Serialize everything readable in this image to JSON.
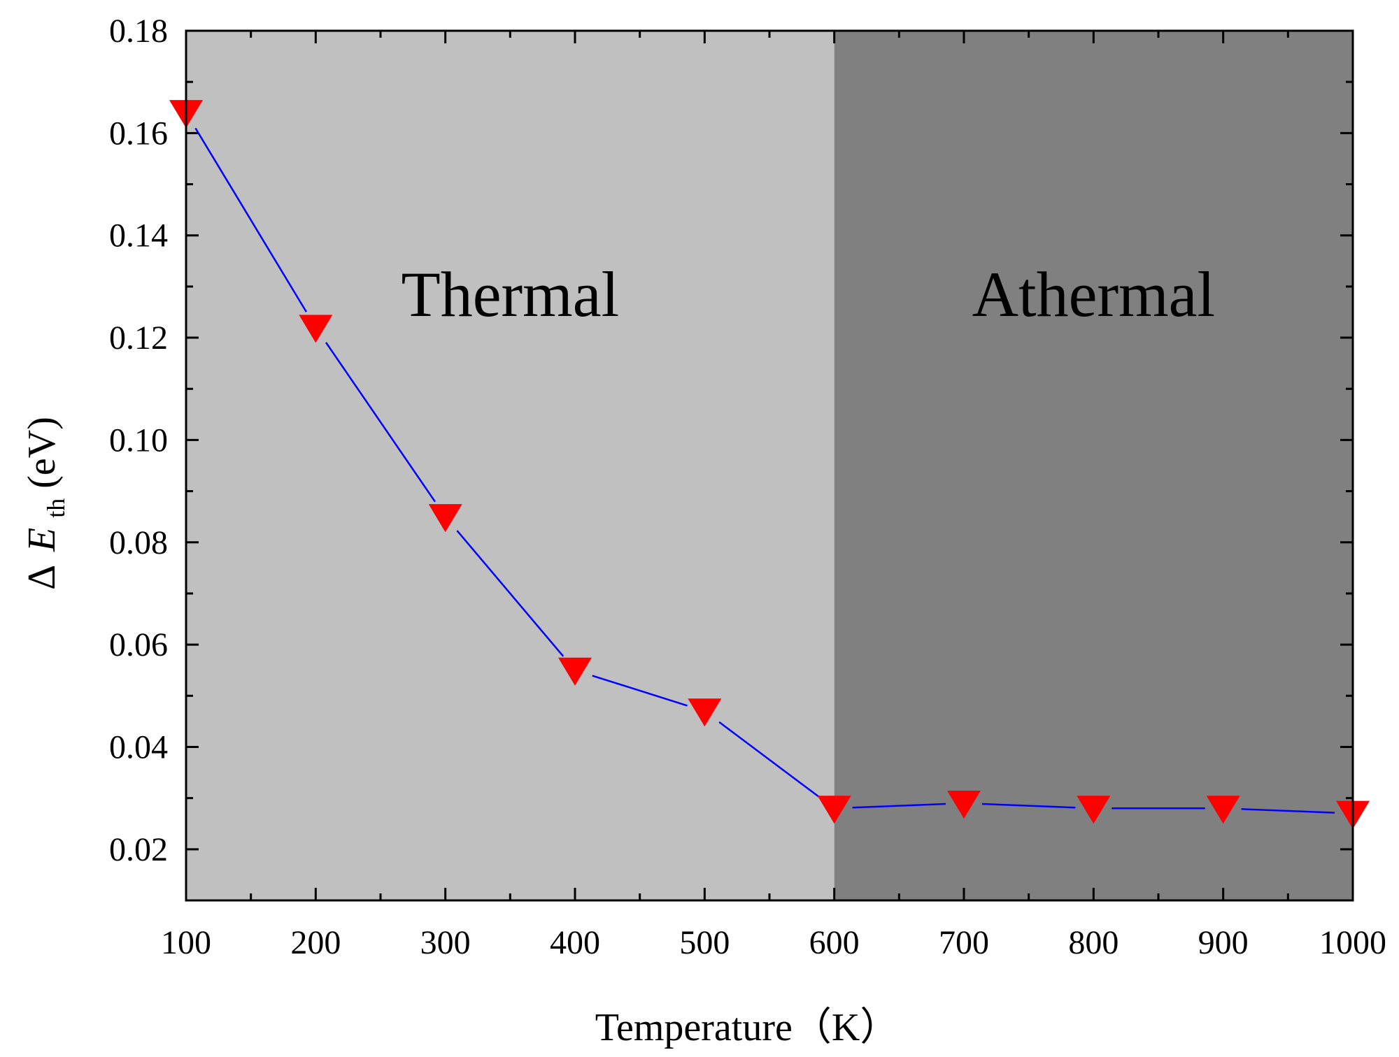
{
  "chart_data": {
    "type": "line",
    "title": "",
    "xlabel": "Temperature（K）",
    "ylabel": {
      "prefix": "Δ",
      "symbol": "E",
      "subscript": "th",
      "unit": "(eV)"
    },
    "xlim": [
      100,
      1000
    ],
    "ylim": [
      0.01,
      0.18
    ],
    "x_ticks": [
      100,
      200,
      300,
      400,
      500,
      600,
      700,
      800,
      900,
      1000
    ],
    "x_tick_labels": [
      "100",
      "200",
      "300",
      "400",
      "500",
      "600",
      "700",
      "800",
      "900",
      "1000"
    ],
    "y_ticks": [
      0.02,
      0.04,
      0.06,
      0.08,
      0.1,
      0.12,
      0.14,
      0.16,
      0.18
    ],
    "y_tick_labels": [
      "0.02",
      "0.04",
      "0.06",
      "0.08",
      "0.10",
      "0.12",
      "0.14",
      "0.16",
      "0.18"
    ],
    "series": [
      {
        "name": "ΔE_th",
        "marker": "down-triangle",
        "marker_color": "#ff0000",
        "line_color": "#0000ff",
        "x": [
          100,
          200,
          300,
          400,
          500,
          600,
          700,
          800,
          900,
          1000
        ],
        "values": [
          0.164,
          0.122,
          0.085,
          0.055,
          0.047,
          0.028,
          0.029,
          0.028,
          0.028,
          0.027
        ]
      }
    ],
    "regions": [
      {
        "label": "Thermal",
        "x_start": 100,
        "x_end": 600,
        "color": "#c0c0c0"
      },
      {
        "label": "Athermal",
        "x_start": 600,
        "x_end": 1000,
        "color": "#808080"
      }
    ]
  }
}
